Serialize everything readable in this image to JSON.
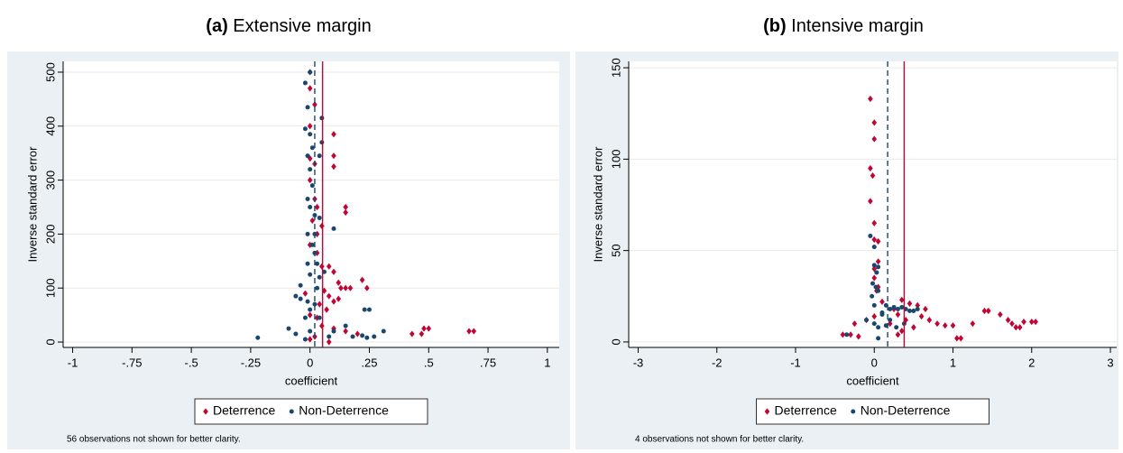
{
  "chart_data": [
    {
      "type": "scatter",
      "panel_label": "(a)",
      "title": "Extensive margin",
      "x_label": "coefficient",
      "y_label": "Inverse standard error",
      "xlim": [
        -1.04,
        1.05
      ],
      "ylim": [
        -10,
        520
      ],
      "xticks": [
        -1,
        {
          "value": -0.75,
          "label": "-.75"
        },
        {
          "value": -0.5,
          "label": "-.5"
        },
        {
          "value": -0.25,
          "label": "-.25"
        },
        0,
        {
          "value": 0.25,
          "label": ".25"
        },
        {
          "value": 0.5,
          "label": ".5"
        },
        {
          "value": 0.75,
          "label": ".75"
        },
        1
      ],
      "yticks": [
        0,
        100,
        200,
        300,
        400,
        500
      ],
      "grid": true,
      "reference_lines": [
        {
          "value": 0.02,
          "color": "#1a476f",
          "style": "dashed"
        },
        {
          "value": 0.053,
          "color": "#c10534",
          "style": "solid"
        }
      ],
      "series": [
        {
          "name": "Deterrence",
          "color": "#c10534",
          "marker": "diamond",
          "x": [
            0.0,
            0.0,
            0.02,
            0.0,
            0.0,
            0.02,
            0.1,
            0.1,
            0.1,
            0.0,
            0.02,
            0.03,
            0.15,
            0.15,
            0.01,
            0.05,
            0.03,
            0.0,
            0.03,
            0.05,
            0.08,
            0.1,
            0.12,
            0.22,
            0.24,
            0.13,
            0.15,
            0.17,
            0.06,
            0.08,
            0.1,
            0.04,
            0.07,
            0.0,
            0.03,
            0.05,
            0.1,
            0.15,
            0.2,
            0.43,
            0.47,
            0.48,
            0.5,
            0.67,
            0.69,
            -0.02,
            0.02,
            0.0,
            0.08,
            0.12
          ],
          "y": [
            500,
            470,
            440,
            400,
            340,
            330,
            385,
            345,
            325,
            300,
            265,
            250,
            250,
            240,
            225,
            215,
            200,
            180,
            165,
            140,
            140,
            130,
            110,
            115,
            100,
            100,
            100,
            100,
            95,
            85,
            75,
            70,
            60,
            50,
            45,
            30,
            25,
            20,
            15,
            15,
            15,
            25,
            25,
            20,
            20,
            90,
            10,
            5,
            0,
            80
          ]
        },
        {
          "name": "Non-Deterrence",
          "color": "#1a476f",
          "marker": "circle",
          "x": [
            0.0,
            -0.02,
            -0.01,
            0.05,
            -0.02,
            0.0,
            0.05,
            0.01,
            -0.01,
            0.04,
            0.0,
            0.01,
            -0.01,
            0.0,
            0.02,
            0.04,
            -0.01,
            0.02,
            0.1,
            0.01,
            0.02,
            -0.01,
            0.03,
            0.06,
            0.0,
            0.04,
            -0.04,
            0.03,
            -0.06,
            -0.04,
            -0.01,
            0.02,
            0.0,
            -0.02,
            0.04,
            0.23,
            0.25,
            -0.22,
            -0.09,
            -0.06,
            0.0,
            0.1,
            0.15,
            0.18,
            0.22,
            0.24,
            0.31,
            0.27,
            0.08,
            -0.02
          ],
          "y": [
            500,
            480,
            435,
            415,
            395,
            385,
            370,
            360,
            345,
            345,
            320,
            290,
            265,
            250,
            235,
            230,
            200,
            200,
            210,
            180,
            165,
            145,
            145,
            130,
            125,
            120,
            105,
            100,
            85,
            80,
            75,
            70,
            60,
            45,
            45,
            60,
            60,
            8,
            25,
            15,
            20,
            20,
            30,
            10,
            12,
            8,
            20,
            10,
            10,
            5
          ]
        }
      ],
      "note": "56 observations not shown for better clarity."
    },
    {
      "type": "scatter",
      "panel_label": "(b)",
      "title": "Intensive margin",
      "x_label": "coefficient",
      "y_label": "Inverse standard error",
      "xlim": [
        -3.12,
        3.08
      ],
      "ylim": [
        -3,
        153.5
      ],
      "xticks": [
        -3,
        -2,
        -1,
        0,
        1,
        2,
        3
      ],
      "yticks": [
        0,
        50,
        100,
        150
      ],
      "grid": true,
      "reference_lines": [
        {
          "value": 0.17,
          "color": "#1a476f",
          "style": "dashed"
        },
        {
          "value": 0.38,
          "color": "#c10534",
          "style": "solid"
        }
      ],
      "series": [
        {
          "name": "Deterrence",
          "color": "#c10534",
          "marker": "diamond",
          "x": [
            -0.05,
            0.0,
            0.0,
            -0.05,
            -0.02,
            -0.05,
            0.0,
            0.0,
            0.05,
            0.05,
            0.0,
            0.0,
            0.05,
            0.03,
            0.1,
            0.35,
            0.45,
            0.55,
            0.65,
            0.3,
            0.4,
            0.6,
            0.7,
            0.8,
            0.9,
            0.5,
            0.35,
            0.3,
            0.2,
            0.0,
            -0.1,
            -0.25,
            -0.3,
            -0.4,
            -0.2,
            1.0,
            1.05,
            1.1,
            1.25,
            1.4,
            1.45,
            1.6,
            1.7,
            1.75,
            1.8,
            1.85,
            1.9,
            2.0,
            2.05,
            0.25
          ],
          "y": [
            133,
            120,
            111,
            95,
            91,
            77,
            65,
            56,
            55,
            44,
            40,
            35,
            30,
            28,
            22,
            23,
            21,
            20,
            18,
            15,
            12,
            14,
            12,
            10,
            9,
            8,
            6,
            4,
            10,
            14,
            12,
            10,
            4,
            4,
            3,
            9,
            2,
            2,
            10,
            17,
            17,
            15,
            12,
            10,
            8,
            8,
            11,
            11,
            11,
            18
          ]
        },
        {
          "name": "Non-Deterrence",
          "color": "#1a476f",
          "marker": "circle",
          "x": [
            -0.05,
            0.0,
            0.0,
            0.05,
            0.03,
            -0.02,
            0.02,
            0.05,
            -0.03,
            0.15,
            0.2,
            0.25,
            0.3,
            0.35,
            0.4,
            0.45,
            0.5,
            0.55,
            0.1,
            0.0,
            0.05,
            -0.35,
            0.05,
            0.1,
            0.2,
            0.15,
            0.38,
            0.28,
            -0.1,
            0.0
          ],
          "y": [
            58,
            52,
            42,
            41,
            38,
            32,
            30,
            28,
            25,
            20,
            18,
            19,
            18,
            19,
            18,
            17,
            17,
            18,
            15,
            10,
            8,
            4,
            2,
            16,
            12,
            9,
            10,
            8,
            12,
            20
          ]
        }
      ],
      "note": "4 observations not shown for better clarity."
    }
  ]
}
